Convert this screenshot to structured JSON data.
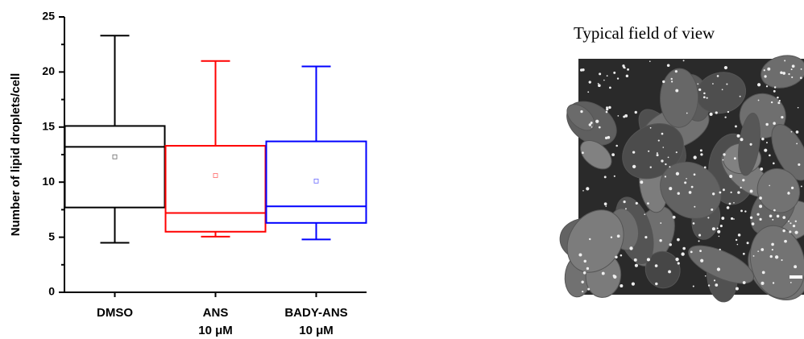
{
  "chart_data": {
    "type": "box",
    "ylabel": "Number of lipid droplets/cell",
    "categories": [
      [
        "DMSO"
      ],
      [
        "ANS",
        "10 μM"
      ],
      [
        "BADY-ANS",
        "10 μM"
      ]
    ],
    "boxes": [
      {
        "color": "#000000",
        "whisker_low": 4.5,
        "q1": 7.7,
        "median": 13.2,
        "q3": 15.1,
        "whisker_high": 23.3,
        "mean": 12.3
      },
      {
        "color": "#ff0000",
        "whisker_low": 5.05,
        "q1": 5.5,
        "median": 7.2,
        "q3": 13.3,
        "whisker_high": 21.0,
        "mean": 10.6
      },
      {
        "color": "#0000ff",
        "whisker_low": 4.8,
        "q1": 6.3,
        "median": 7.8,
        "q3": 13.7,
        "whisker_high": 20.5,
        "mean": 10.1
      }
    ],
    "ylim": [
      0,
      25
    ],
    "yticks": [
      0,
      5,
      10,
      15,
      20,
      25
    ],
    "yminorticks": [
      2.5,
      7.5,
      12.5,
      17.5,
      22.5
    ]
  },
  "image": {
    "title": "Typical field of view"
  }
}
